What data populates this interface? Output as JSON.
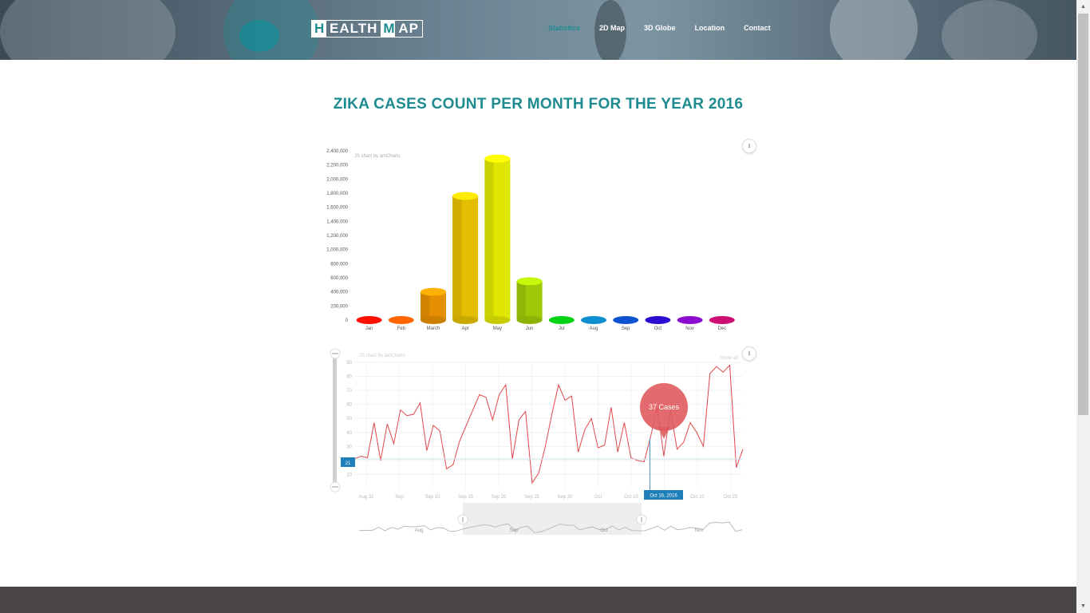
{
  "header": {
    "logo": {
      "h": "H",
      "ealth": "EALTH",
      "m": "M",
      "ap": "AP"
    },
    "nav": [
      {
        "label": "Statistics",
        "active": true
      },
      {
        "label": "2D Map"
      },
      {
        "label": "3D Globe"
      },
      {
        "label": "Location"
      },
      {
        "label": "Contact"
      }
    ]
  },
  "main": {
    "title": "ZIKA CASES COUNT PER MONTH FOR THE YEAR 2016"
  },
  "chart_data": [
    {
      "type": "bar",
      "credit": "JS chart by amCharts",
      "categories": [
        "Jan",
        "Feb",
        "March",
        "Apr",
        "May",
        "Jun",
        "Jul",
        "Aug",
        "Sep",
        "Oct",
        "Nov",
        "Dec"
      ],
      "values": [
        0,
        0,
        400000,
        1760000,
        2290000,
        550000,
        0,
        0,
        0,
        0,
        0,
        0
      ],
      "colors": [
        "#ff0f00",
        "#ff6600",
        "#ff9e01",
        "#fcd202",
        "#f8ff01",
        "#b0de09",
        "#04d215",
        "#0d8ecf",
        "#0d52d1",
        "#2a0cd0",
        "#8a0ccf",
        "#cd0d74"
      ],
      "ylim": [
        0,
        2400000
      ],
      "yticks": [
        "0",
        "200,000",
        "400,000",
        "600,000",
        "800,000",
        "1,000,000",
        "1,200,000",
        "1,400,000",
        "1,600,000",
        "1,800,000",
        "2,000,000",
        "2,200,000",
        "2,400,000"
      ]
    },
    {
      "type": "line",
      "credit": "JS chart by amCharts",
      "show_all": "Show all",
      "color": "#e0474c",
      "ylim": [
        0,
        90
      ],
      "yticks": [
        "10",
        "20",
        "30",
        "40",
        "50",
        "60",
        "70",
        "80",
        "90"
      ],
      "xticks": [
        "Aug 31",
        "Sep",
        "Sep 10",
        "Sep 15",
        "Sep 20",
        "Sep 25",
        "Sep 30",
        "Oct",
        "Oct 10",
        "Oct 15",
        "Oct 20",
        "Oct 25"
      ],
      "values": [
        21,
        23,
        22,
        47,
        20,
        46,
        32,
        56,
        52,
        53,
        61,
        27,
        45,
        41,
        14,
        17,
        34,
        45,
        56,
        67,
        65,
        49,
        67,
        74,
        21,
        49,
        55,
        4,
        11,
        30,
        53,
        74,
        63,
        66,
        26,
        42,
        50,
        29,
        31,
        58,
        26,
        47,
        22,
        20,
        19,
        37,
        58,
        23,
        56,
        28,
        33,
        47,
        40,
        30,
        82,
        87,
        83,
        88,
        15,
        28
      ],
      "hover": {
        "label": "37 Cases",
        "date": "Oct 16, 2016",
        "index": 45
      },
      "cursor_value": "21",
      "scrollbar_labels": [
        "Aug",
        "Sep",
        "Oct",
        "Nov"
      ]
    }
  ]
}
